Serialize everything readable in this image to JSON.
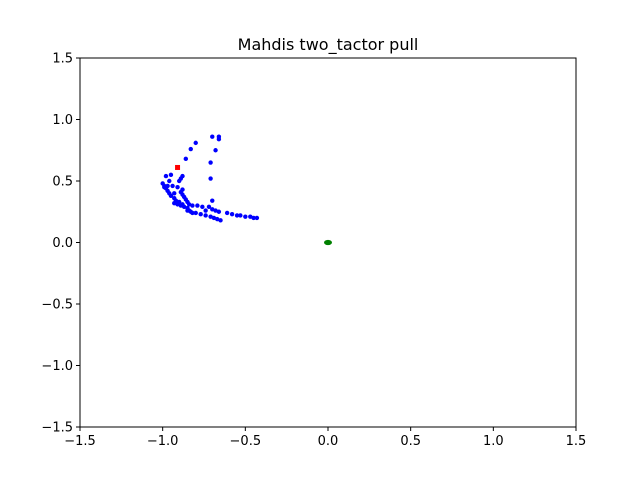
{
  "chart_data": {
    "type": "scatter",
    "title": "Mahdis two_tactor pull",
    "xlabel": "",
    "ylabel": "",
    "xlim": [
      -1.5,
      1.5
    ],
    "ylim": [
      -1.5,
      1.5
    ],
    "x_ticks": [
      -1.5,
      -1.0,
      -0.5,
      0.0,
      0.5,
      1.0,
      1.5
    ],
    "y_ticks": [
      -1.5,
      -1.0,
      -0.5,
      0.0,
      0.5,
      1.0,
      1.5
    ],
    "x_tick_labels": [
      "−1.5",
      "−1.0",
      "−0.5",
      "0.0",
      "0.5",
      "1.0",
      "1.5"
    ],
    "y_tick_labels": [
      "−1.5",
      "−1.0",
      "−0.5",
      "0.0",
      "0.5",
      "1.0",
      "1.5"
    ],
    "grid": false,
    "series": [
      {
        "color": "#0000ff",
        "marker": "circle",
        "points": [
          [
            -0.7,
            0.86
          ],
          [
            -0.66,
            0.86
          ],
          [
            -0.66,
            0.84
          ],
          [
            -0.8,
            0.81
          ],
          [
            -0.83,
            0.76
          ],
          [
            -0.68,
            0.75
          ],
          [
            -0.86,
            0.68
          ],
          [
            -0.71,
            0.65
          ],
          [
            -0.95,
            0.55
          ],
          [
            -0.98,
            0.54
          ],
          [
            -0.88,
            0.54
          ],
          [
            -0.89,
            0.52
          ],
          [
            -0.71,
            0.52
          ],
          [
            -0.9,
            0.5
          ],
          [
            -0.96,
            0.5
          ],
          [
            -1.0,
            0.48
          ],
          [
            -0.99,
            0.46
          ],
          [
            -0.97,
            0.46
          ],
          [
            -0.94,
            0.46
          ],
          [
            -0.99,
            0.45
          ],
          [
            -0.91,
            0.45
          ],
          [
            -0.98,
            0.44
          ],
          [
            -0.88,
            0.43
          ],
          [
            -0.97,
            0.42
          ],
          [
            -0.89,
            0.41
          ],
          [
            -0.96,
            0.4
          ],
          [
            -0.93,
            0.4
          ],
          [
            -0.88,
            0.39
          ],
          [
            -0.95,
            0.38
          ],
          [
            -0.87,
            0.37
          ],
          [
            -0.93,
            0.36
          ],
          [
            -0.86,
            0.35
          ],
          [
            -0.92,
            0.34
          ],
          [
            -0.7,
            0.34
          ],
          [
            -0.85,
            0.33
          ],
          [
            -0.9,
            0.33
          ],
          [
            -0.93,
            0.32
          ],
          [
            -0.88,
            0.31
          ],
          [
            -0.84,
            0.31
          ],
          [
            -0.82,
            0.3
          ],
          [
            -0.79,
            0.3
          ],
          [
            -0.76,
            0.29
          ],
          [
            -0.72,
            0.29
          ],
          [
            -0.87,
            0.29
          ],
          [
            -0.85,
            0.28
          ],
          [
            -0.7,
            0.27
          ],
          [
            -0.68,
            0.26
          ],
          [
            -0.74,
            0.26
          ],
          [
            -0.66,
            0.25
          ],
          [
            -0.84,
            0.26
          ],
          [
            -0.83,
            0.25
          ],
          [
            -0.8,
            0.24
          ],
          [
            -0.61,
            0.24
          ],
          [
            -0.58,
            0.23
          ],
          [
            -0.55,
            0.22
          ],
          [
            -0.53,
            0.22
          ],
          [
            -0.5,
            0.21
          ],
          [
            -0.47,
            0.21
          ],
          [
            -0.45,
            0.2
          ],
          [
            -0.43,
            0.2
          ],
          [
            -0.77,
            0.23
          ],
          [
            -0.74,
            0.22
          ],
          [
            -0.71,
            0.21
          ],
          [
            -0.69,
            0.2
          ],
          [
            -0.67,
            0.19
          ],
          [
            -0.65,
            0.18
          ],
          [
            -0.82,
            0.24
          ],
          [
            -0.85,
            0.26
          ],
          [
            -0.89,
            0.3
          ],
          [
            -0.91,
            0.31
          ]
        ]
      },
      {
        "color": "#ff0000",
        "marker": "square",
        "points": [
          [
            -0.91,
            0.61
          ]
        ]
      },
      {
        "color": "#008000",
        "marker": "circle",
        "points": [
          [
            0.0,
            0.0
          ]
        ]
      }
    ]
  }
}
